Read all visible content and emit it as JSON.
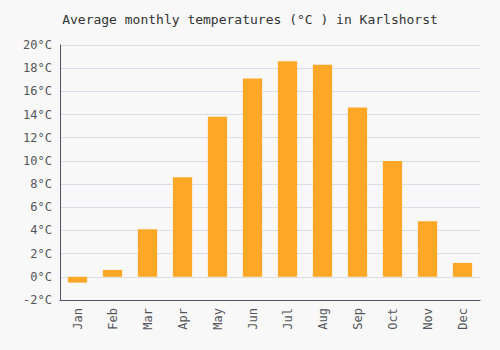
{
  "chart_data": {
    "type": "bar",
    "title": "Average monthly temperatures (°C ) in Karlshorst",
    "categories": [
      "Jan",
      "Feb",
      "Mar",
      "Apr",
      "May",
      "Jun",
      "Jul",
      "Aug",
      "Sep",
      "Oct",
      "Nov",
      "Dec"
    ],
    "values": [
      -0.5,
      0.6,
      4.1,
      8.6,
      13.8,
      17.1,
      18.6,
      18.3,
      14.6,
      10.0,
      4.8,
      1.2
    ],
    "color": "#FFA726",
    "ylim": [
      -2,
      20
    ],
    "yticks": [
      {
        "value": -2,
        "label": "-2°C"
      },
      {
        "value": 0,
        "label": "0°C"
      },
      {
        "value": 2,
        "label": "2°C"
      },
      {
        "value": 4,
        "label": "4°C"
      },
      {
        "value": 6,
        "label": "6°C"
      },
      {
        "value": 8,
        "label": "8°C"
      },
      {
        "value": 10,
        "label": "10°C"
      },
      {
        "value": 12,
        "label": "12°C"
      },
      {
        "value": 14,
        "label": "14°C"
      },
      {
        "value": 16,
        "label": "16°C"
      },
      {
        "value": 18,
        "label": "18°C"
      },
      {
        "value": 20,
        "label": "20°C"
      }
    ],
    "grid": true
  }
}
